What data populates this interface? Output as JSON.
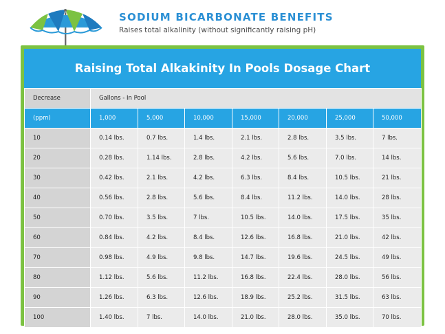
{
  "header": {
    "title": "SODIUM BICARBONATE BENEFITS",
    "subtitle": "Raises total alkalinity (without significantly raising pH)"
  },
  "chart": {
    "title": "Raising Total Alkakinity In Pools Dosage Chart",
    "decrease_label": "Decrease",
    "gallons_label": "Gallons - In Pool",
    "units_label": "(ppm)",
    "gallons": [
      "1,000",
      "5,000",
      "10,000",
      "15,000",
      "20,000",
      "25,000",
      "50,000"
    ],
    "rows": [
      {
        "ppm": "10",
        "values": [
          "0.14 lbs.",
          "0.7 lbs.",
          "1.4 lbs.",
          "2.1 lbs.",
          "2.8 lbs.",
          "3.5 lbs.",
          "7 lbs."
        ]
      },
      {
        "ppm": "20",
        "values": [
          "0.28 lbs.",
          "1.14 lbs.",
          "2.8 lbs.",
          "4.2 lbs.",
          "5.6 lbs.",
          "7.0 lbs.",
          "14 lbs."
        ]
      },
      {
        "ppm": "30",
        "values": [
          "0.42 lbs.",
          "2.1 lbs.",
          "4.2 lbs.",
          "6.3 lbs.",
          "8.4 lbs.",
          "10.5 lbs.",
          "21 lbs."
        ]
      },
      {
        "ppm": "40",
        "values": [
          "0.56 lbs.",
          "2.8 lbs.",
          "5.6 lbs.",
          "8.4 lbs.",
          "11.2 lbs.",
          "14.0 lbs.",
          "28 lbs."
        ]
      },
      {
        "ppm": "50",
        "values": [
          "0.70 lbs.",
          "3.5 lbs.",
          "7 lbs.",
          "10.5 lbs.",
          "14.0 lbs.",
          "17.5 lbs.",
          "35 lbs."
        ]
      },
      {
        "ppm": "60",
        "values": [
          "0.84 lbs.",
          "4.2 lbs.",
          "8.4 lbs.",
          "12.6 lbs.",
          "16.8 lbs.",
          "21.0 lbs.",
          "42 lbs."
        ]
      },
      {
        "ppm": "70",
        "values": [
          "0.98 lbs.",
          "4.9 lbs.",
          "9.8 lbs.",
          "14.7 lbs.",
          "19.6 lbs.",
          "24.5 lbs.",
          "49 lbs."
        ]
      },
      {
        "ppm": "80",
        "values": [
          "1.12 lbs.",
          "5.6 lbs.",
          "11.2 lbs.",
          "16.8 lbs.",
          "22.4 lbs.",
          "28.0 lbs.",
          "56 lbs."
        ]
      },
      {
        "ppm": "90",
        "values": [
          "1.26 lbs.",
          "6.3 lbs.",
          "12.6 lbs.",
          "18.9 lbs.",
          "25.2 lbs.",
          "31.5 lbs.",
          "63 lbs."
        ]
      },
      {
        "ppm": "100",
        "values": [
          "1.40 lbs.",
          "7 lbs.",
          "14.0 lbs.",
          "21.0 lbs.",
          "28.0 lbs.",
          "35.0 lbs.",
          "70 lbs."
        ]
      }
    ]
  },
  "colors": {
    "accent_blue": "#27a4e3",
    "title_blue": "#2a8fd4",
    "frame_green": "#7cc242",
    "cell_gray": "#ebebeb",
    "label_gray": "#d4d4d4"
  },
  "icons": {
    "logo": "beach-umbrella-icon"
  }
}
